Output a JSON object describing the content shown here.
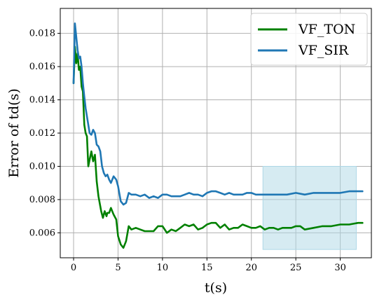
{
  "chart_data": {
    "type": "line",
    "xlabel": "t(s)",
    "ylabel": "Error of td(s)",
    "xlim": [
      -1.5,
      33.5
    ],
    "ylim": [
      0.0045,
      0.0195
    ],
    "xticks": [
      0,
      5,
      10,
      15,
      20,
      25,
      30
    ],
    "yticks": [
      0.006,
      0.008,
      0.01,
      0.012,
      0.014,
      0.016,
      0.018
    ],
    "xtick_labels": [
      "0",
      "5",
      "10",
      "15",
      "20",
      "25",
      "30"
    ],
    "ytick_labels": [
      "0.006",
      "0.008",
      "0.010",
      "0.012",
      "0.014",
      "0.016",
      "0.018"
    ],
    "grid": true,
    "legend_position": "top-right",
    "shaded_region": {
      "x": [
        21.3,
        31.8
      ],
      "y": [
        0.005,
        0.01
      ],
      "color": "#add8e6"
    },
    "series": [
      {
        "name": "VF_TON",
        "color": "#008000",
        "x": [
          0.0,
          0.15,
          0.3,
          0.45,
          0.6,
          0.75,
          0.9,
          1.05,
          1.2,
          1.35,
          1.5,
          1.65,
          1.8,
          2.0,
          2.2,
          2.4,
          2.6,
          2.8,
          3.0,
          3.1,
          3.3,
          3.5,
          3.7,
          3.8,
          4.0,
          4.2,
          4.5,
          4.8,
          5.0,
          5.3,
          5.6,
          5.9,
          6.2,
          6.5,
          7.0,
          7.5,
          8.0,
          8.5,
          9.0,
          9.5,
          10.0,
          10.5,
          11.0,
          11.5,
          12.0,
          12.5,
          13.0,
          13.5,
          14.0,
          14.5,
          15.0,
          15.5,
          16.0,
          16.5,
          17.0,
          17.5,
          18.0,
          18.5,
          19.0,
          19.5,
          20.0,
          20.5,
          21.0,
          21.5,
          22.0,
          22.5,
          23.0,
          23.5,
          24.0,
          24.5,
          25.0,
          25.5,
          26.0,
          27.0,
          28.0,
          29.0,
          30.0,
          31.0,
          32.0,
          32.5
        ],
        "y": [
          0.015,
          0.0172,
          0.0162,
          0.0168,
          0.0158,
          0.016,
          0.0148,
          0.0145,
          0.0125,
          0.012,
          0.0118,
          0.01,
          0.0104,
          0.0109,
          0.0103,
          0.0107,
          0.0091,
          0.0082,
          0.0076,
          0.0073,
          0.0069,
          0.0073,
          0.007,
          0.0072,
          0.0072,
          0.0075,
          0.0071,
          0.0068,
          0.0058,
          0.0053,
          0.0051,
          0.0055,
          0.0064,
          0.0062,
          0.0063,
          0.0062,
          0.0061,
          0.0061,
          0.0061,
          0.0064,
          0.0064,
          0.006,
          0.0062,
          0.0061,
          0.0063,
          0.0065,
          0.0064,
          0.0065,
          0.0062,
          0.0063,
          0.0065,
          0.0066,
          0.0066,
          0.0063,
          0.0065,
          0.0062,
          0.0063,
          0.0063,
          0.0065,
          0.0064,
          0.0063,
          0.0063,
          0.0064,
          0.0062,
          0.0063,
          0.0063,
          0.0062,
          0.0063,
          0.0063,
          0.0063,
          0.0064,
          0.0064,
          0.0062,
          0.0063,
          0.0064,
          0.0064,
          0.0065,
          0.0065,
          0.0066,
          0.0066
        ]
      },
      {
        "name": "VF_SIR",
        "color": "#1f77b4",
        "x": [
          0.0,
          0.15,
          0.3,
          0.45,
          0.6,
          0.75,
          0.9,
          1.05,
          1.2,
          1.35,
          1.5,
          1.65,
          1.8,
          2.0,
          2.2,
          2.4,
          2.6,
          2.8,
          3.0,
          3.2,
          3.4,
          3.6,
          3.8,
          4.0,
          4.2,
          4.5,
          4.8,
          5.0,
          5.3,
          5.6,
          5.9,
          6.2,
          6.5,
          7.0,
          7.5,
          8.0,
          8.5,
          9.0,
          9.5,
          10.0,
          10.5,
          11.0,
          11.5,
          12.0,
          12.5,
          13.0,
          13.5,
          14.0,
          14.5,
          15.0,
          15.5,
          16.0,
          16.5,
          17.0,
          17.5,
          18.0,
          18.5,
          19.0,
          19.5,
          20.0,
          20.5,
          21.0,
          22.0,
          23.0,
          24.0,
          25.0,
          26.0,
          27.0,
          28.0,
          29.0,
          30.0,
          31.0,
          32.0,
          32.5
        ],
        "y": [
          0.015,
          0.0186,
          0.0178,
          0.017,
          0.0165,
          0.0166,
          0.016,
          0.015,
          0.0142,
          0.0135,
          0.013,
          0.0125,
          0.012,
          0.0119,
          0.0122,
          0.012,
          0.0113,
          0.0112,
          0.0109,
          0.01,
          0.0096,
          0.0094,
          0.0095,
          0.0092,
          0.009,
          0.0094,
          0.0092,
          0.0088,
          0.0079,
          0.0077,
          0.0078,
          0.0084,
          0.0083,
          0.0083,
          0.0082,
          0.0083,
          0.0081,
          0.0082,
          0.0081,
          0.0083,
          0.0083,
          0.0082,
          0.0082,
          0.0082,
          0.0083,
          0.0084,
          0.0083,
          0.0083,
          0.0082,
          0.0084,
          0.0085,
          0.0085,
          0.0084,
          0.0083,
          0.0084,
          0.0083,
          0.0083,
          0.0083,
          0.0084,
          0.0084,
          0.0083,
          0.0083,
          0.0083,
          0.0083,
          0.0083,
          0.0084,
          0.0083,
          0.0084,
          0.0084,
          0.0084,
          0.0084,
          0.0085,
          0.0085,
          0.0085
        ]
      }
    ]
  }
}
